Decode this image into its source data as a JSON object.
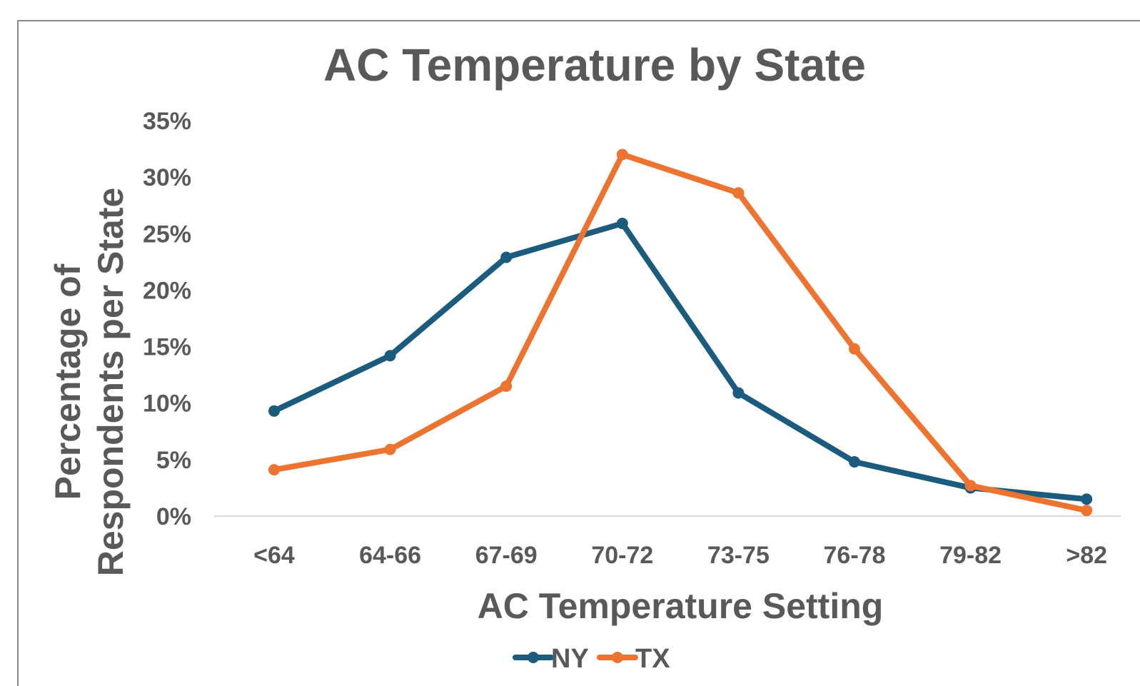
{
  "chart_data": {
    "type": "line",
    "title": "AC Temperature by State",
    "xlabel": "AC Temperature Setting",
    "ylabel_lines": [
      "Percentage of",
      "Respondents per State"
    ],
    "categories": [
      "<64",
      "64-66",
      "67-69",
      "70-72",
      "73-75",
      "76-78",
      "79-82",
      ">82"
    ],
    "ylim": [
      0,
      35
    ],
    "y_ticks": [
      0,
      5,
      10,
      15,
      20,
      25,
      30,
      35
    ],
    "y_tick_labels": [
      "0%",
      "5%",
      "10%",
      "15%",
      "20%",
      "25%",
      "30%",
      "35%"
    ],
    "grid": false,
    "legend_position": "bottom",
    "series": [
      {
        "name": "NY",
        "color": "#1b5b7e",
        "values": [
          9.3,
          14.2,
          22.9,
          25.9,
          10.9,
          4.8,
          2.5,
          1.5
        ]
      },
      {
        "name": "TX",
        "color": "#ed7430",
        "values": [
          4.1,
          5.9,
          11.5,
          32.0,
          28.6,
          14.8,
          2.7,
          0.5
        ]
      }
    ]
  }
}
